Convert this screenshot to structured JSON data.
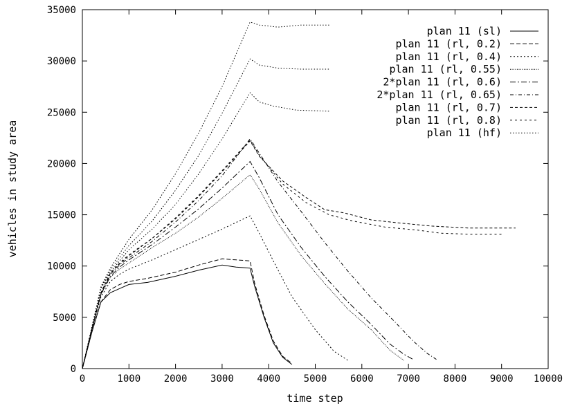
{
  "chart_data": {
    "type": "line",
    "xlabel": "time step",
    "ylabel": "vehicles in study area",
    "xlim": [
      0,
      10000
    ],
    "ylim": [
      0,
      35000
    ],
    "xticks": [
      "0",
      "1000",
      "2000",
      "3000",
      "4000",
      "5000",
      "6000",
      "7000",
      "8000",
      "9000",
      "10000"
    ],
    "yticks": [
      "0",
      "5000",
      "10000",
      "15000",
      "20000",
      "25000",
      "30000",
      "35000"
    ],
    "legend_position": "top-right",
    "grid": false,
    "series": [
      {
        "name": "plan 11 (sl)",
        "style": "solid",
        "points": [
          [
            0,
            0
          ],
          [
            200,
            3500
          ],
          [
            400,
            6500
          ],
          [
            600,
            7400
          ],
          [
            800,
            7800
          ],
          [
            1000,
            8200
          ],
          [
            1400,
            8400
          ],
          [
            2000,
            9000
          ],
          [
            2500,
            9600
          ],
          [
            3000,
            10100
          ],
          [
            3300,
            9900
          ],
          [
            3600,
            9800
          ],
          [
            3700,
            8000
          ],
          [
            3900,
            5000
          ],
          [
            4100,
            2500
          ],
          [
            4300,
            1100
          ],
          [
            4500,
            400
          ]
        ]
      },
      {
        "name": "plan 11 (rl, 0.2)",
        "style": "dash",
        "points": [
          [
            0,
            0
          ],
          [
            200,
            3500
          ],
          [
            400,
            6500
          ],
          [
            600,
            7700
          ],
          [
            800,
            8200
          ],
          [
            1000,
            8500
          ],
          [
            1400,
            8800
          ],
          [
            2000,
            9400
          ],
          [
            2500,
            10100
          ],
          [
            3000,
            10700
          ],
          [
            3300,
            10600
          ],
          [
            3600,
            10500
          ],
          [
            3700,
            8300
          ],
          [
            3900,
            5200
          ],
          [
            4100,
            2700
          ],
          [
            4300,
            1200
          ],
          [
            4500,
            500
          ]
        ]
      },
      {
        "name": "plan 11 (rl, 0.4)",
        "style": "dot",
        "points": [
          [
            0,
            0
          ],
          [
            200,
            3700
          ],
          [
            400,
            7000
          ],
          [
            600,
            8500
          ],
          [
            800,
            9200
          ],
          [
            1000,
            9700
          ],
          [
            1500,
            10600
          ],
          [
            2000,
            11600
          ],
          [
            2500,
            12600
          ],
          [
            3000,
            13600
          ],
          [
            3600,
            14900
          ],
          [
            3800,
            13200
          ],
          [
            4100,
            10500
          ],
          [
            4500,
            7000
          ],
          [
            5000,
            3800
          ],
          [
            5400,
            1700
          ],
          [
            5700,
            800
          ]
        ]
      },
      {
        "name": "plan 11 (rl, 0.55)",
        "style": "finedot",
        "points": [
          [
            0,
            0
          ],
          [
            200,
            3800
          ],
          [
            400,
            7200
          ],
          [
            600,
            8900
          ],
          [
            800,
            9700
          ],
          [
            1000,
            10300
          ],
          [
            1500,
            11800
          ],
          [
            2000,
            13200
          ],
          [
            2500,
            14800
          ],
          [
            3000,
            16600
          ],
          [
            3600,
            18900
          ],
          [
            3800,
            17500
          ],
          [
            4200,
            14200
          ],
          [
            4700,
            11000
          ],
          [
            5200,
            8300
          ],
          [
            5700,
            5800
          ],
          [
            6200,
            3800
          ],
          [
            6600,
            1800
          ],
          [
            6900,
            800
          ]
        ]
      },
      {
        "name": "2*plan 11 (rl, 0.6)",
        "style": "dashdot",
        "points": [
          [
            0,
            0
          ],
          [
            200,
            3800
          ],
          [
            400,
            7300
          ],
          [
            600,
            9000
          ],
          [
            800,
            9900
          ],
          [
            1000,
            10600
          ],
          [
            1500,
            12100
          ],
          [
            2000,
            13800
          ],
          [
            2500,
            15600
          ],
          [
            3000,
            17600
          ],
          [
            3600,
            20200
          ],
          [
            3800,
            18600
          ],
          [
            4200,
            15000
          ],
          [
            4700,
            11800
          ],
          [
            5200,
            9000
          ],
          [
            5700,
            6500
          ],
          [
            6200,
            4300
          ],
          [
            6600,
            2400
          ],
          [
            6900,
            1400
          ],
          [
            7100,
            900
          ]
        ]
      },
      {
        "name": "2*plan 11 (rl, 0.65)",
        "style": "dashdot2",
        "points": [
          [
            0,
            0
          ],
          [
            200,
            3800
          ],
          [
            400,
            7300
          ],
          [
            600,
            9200
          ],
          [
            800,
            10100
          ],
          [
            1000,
            10800
          ],
          [
            1500,
            12400
          ],
          [
            2000,
            14300
          ],
          [
            2500,
            16400
          ],
          [
            3000,
            18800
          ],
          [
            3600,
            22400
          ],
          [
            3800,
            21000
          ],
          [
            4200,
            18200
          ],
          [
            4700,
            15300
          ],
          [
            5200,
            12300
          ],
          [
            5700,
            9500
          ],
          [
            6200,
            6900
          ],
          [
            6700,
            4600
          ],
          [
            7100,
            2700
          ],
          [
            7400,
            1500
          ],
          [
            7600,
            900
          ]
        ]
      },
      {
        "name": "plan 11 (rl, 0.7)",
        "style": "dash2",
        "points": [
          [
            0,
            0
          ],
          [
            200,
            3800
          ],
          [
            400,
            7400
          ],
          [
            600,
            9300
          ],
          [
            800,
            10200
          ],
          [
            1000,
            11000
          ],
          [
            1500,
            12700
          ],
          [
            2000,
            14600
          ],
          [
            2500,
            16800
          ],
          [
            3000,
            19200
          ],
          [
            3600,
            22200
          ],
          [
            3800,
            20700
          ],
          [
            4300,
            18300
          ],
          [
            4800,
            16700
          ],
          [
            5200,
            15500
          ],
          [
            5600,
            15200
          ],
          [
            6200,
            14500
          ],
          [
            6800,
            14200
          ],
          [
            7500,
            13900
          ],
          [
            8300,
            13700
          ],
          [
            9300,
            13700
          ]
        ]
      },
      {
        "name": "plan 11 (rl, 0.8)",
        "style": "dash3",
        "points": [
          [
            0,
            0
          ],
          [
            200,
            3800
          ],
          [
            400,
            7400
          ],
          [
            600,
            9300
          ],
          [
            800,
            10300
          ],
          [
            1000,
            11100
          ],
          [
            1500,
            12700
          ],
          [
            2000,
            14700
          ],
          [
            2500,
            16900
          ],
          [
            3000,
            19300
          ],
          [
            3600,
            22300
          ],
          [
            3800,
            20800
          ],
          [
            4300,
            18000
          ],
          [
            4800,
            16200
          ],
          [
            5300,
            15000
          ],
          [
            5800,
            14400
          ],
          [
            6500,
            13800
          ],
          [
            7200,
            13500
          ],
          [
            7700,
            13200
          ],
          [
            8300,
            13100
          ],
          [
            9000,
            13100
          ]
        ]
      },
      {
        "name": "plan 11 (hf)",
        "style": "dot2",
        "points": [
          [
            0,
            0
          ],
          [
            200,
            4000
          ],
          [
            400,
            8000
          ],
          [
            600,
            9800
          ],
          [
            800,
            11200
          ],
          [
            1000,
            12600
          ],
          [
            1500,
            15500
          ],
          [
            2000,
            19000
          ],
          [
            2500,
            23000
          ],
          [
            3000,
            27500
          ],
          [
            3600,
            33800
          ],
          [
            3800,
            33500
          ],
          [
            4200,
            33300
          ],
          [
            4700,
            33500
          ],
          [
            5300,
            33500
          ]
        ]
      },
      {
        "name": "",
        "style": "dot2",
        "points": [
          [
            0,
            0
          ],
          [
            200,
            4000
          ],
          [
            400,
            7900
          ],
          [
            600,
            9600
          ],
          [
            800,
            10800
          ],
          [
            1000,
            12000
          ],
          [
            1500,
            14400
          ],
          [
            2000,
            17400
          ],
          [
            2500,
            20800
          ],
          [
            3000,
            24900
          ],
          [
            3600,
            30200
          ],
          [
            3800,
            29600
          ],
          [
            4200,
            29300
          ],
          [
            4700,
            29200
          ],
          [
            5300,
            29200
          ]
        ]
      },
      {
        "name": "",
        "style": "dot2",
        "points": [
          [
            0,
            0
          ],
          [
            200,
            3900
          ],
          [
            400,
            7800
          ],
          [
            600,
            9400
          ],
          [
            800,
            10500
          ],
          [
            1000,
            11600
          ],
          [
            1500,
            13600
          ],
          [
            2000,
            16000
          ],
          [
            2500,
            19000
          ],
          [
            3000,
            22400
          ],
          [
            3600,
            26900
          ],
          [
            3800,
            26000
          ],
          [
            4100,
            25600
          ],
          [
            4600,
            25200
          ],
          [
            5300,
            25100
          ]
        ]
      }
    ]
  }
}
